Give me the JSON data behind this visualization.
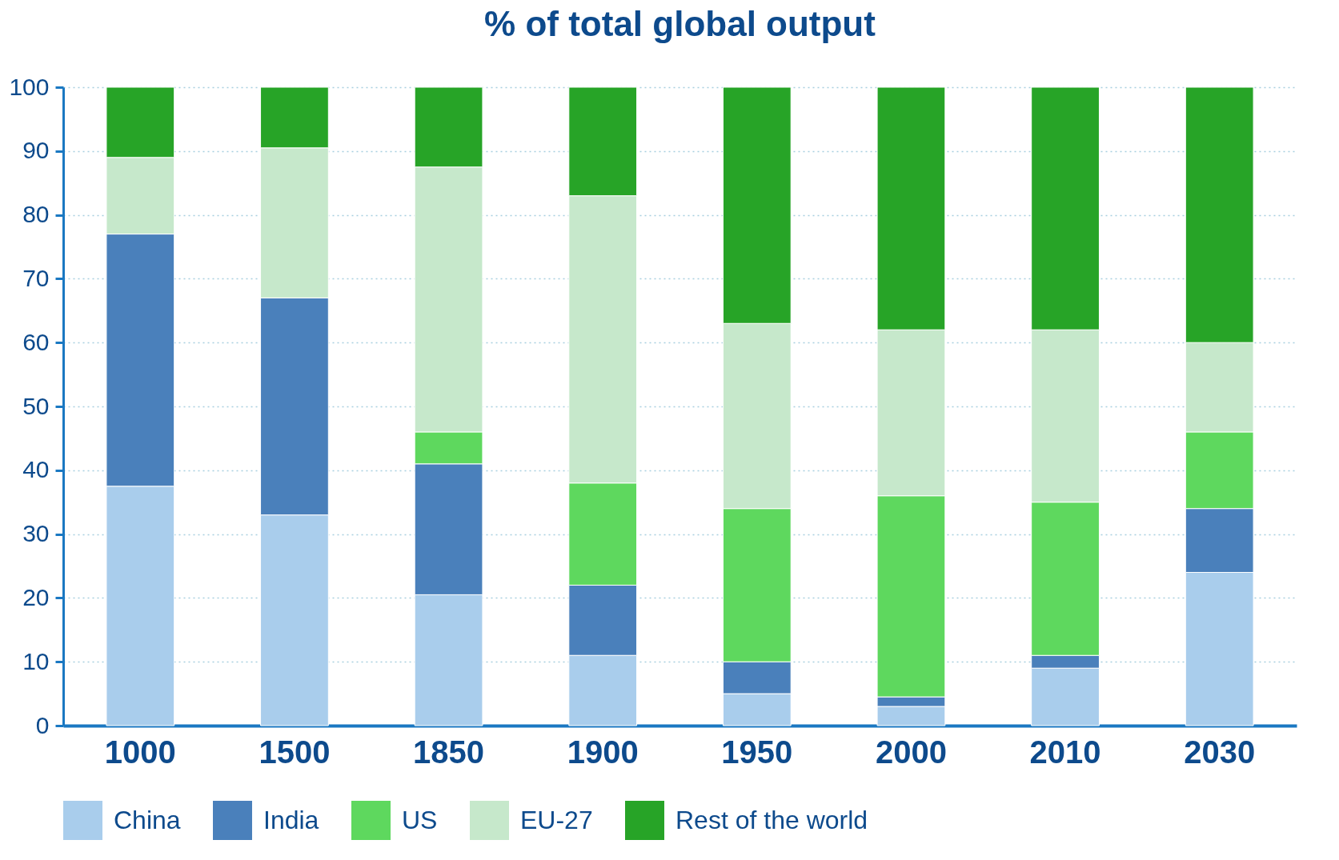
{
  "chart_data": {
    "type": "bar",
    "title": "% of total global output",
    "stacked": true,
    "categories": [
      "1000",
      "1500",
      "1850",
      "1900",
      "1950",
      "2000",
      "2010",
      "2030"
    ],
    "series": [
      {
        "name": "China",
        "color": "#a9cdec",
        "values": [
          37.5,
          33,
          20.5,
          11,
          5,
          3,
          9,
          24
        ]
      },
      {
        "name": "India",
        "color": "#4a80bb",
        "values": [
          39.5,
          34,
          20.5,
          11,
          5,
          1.5,
          2,
          10
        ]
      },
      {
        "name": "US",
        "color": "#5ed85e",
        "values": [
          0,
          0,
          5,
          16,
          24,
          31.5,
          24,
          12
        ]
      },
      {
        "name": "EU-27",
        "color": "#c6e8cb",
        "values": [
          12,
          23.5,
          41.5,
          45,
          29,
          26,
          27,
          14
        ]
      },
      {
        "name": "Rest of the world",
        "color": "#27a427",
        "values": [
          11,
          9.5,
          12.5,
          17,
          37,
          38,
          38,
          40
        ]
      }
    ],
    "ylim": [
      0,
      100
    ],
    "yticks": [
      0,
      10,
      20,
      30,
      40,
      50,
      60,
      70,
      80,
      90,
      100
    ],
    "grid": "y",
    "legend": "bottom"
  }
}
